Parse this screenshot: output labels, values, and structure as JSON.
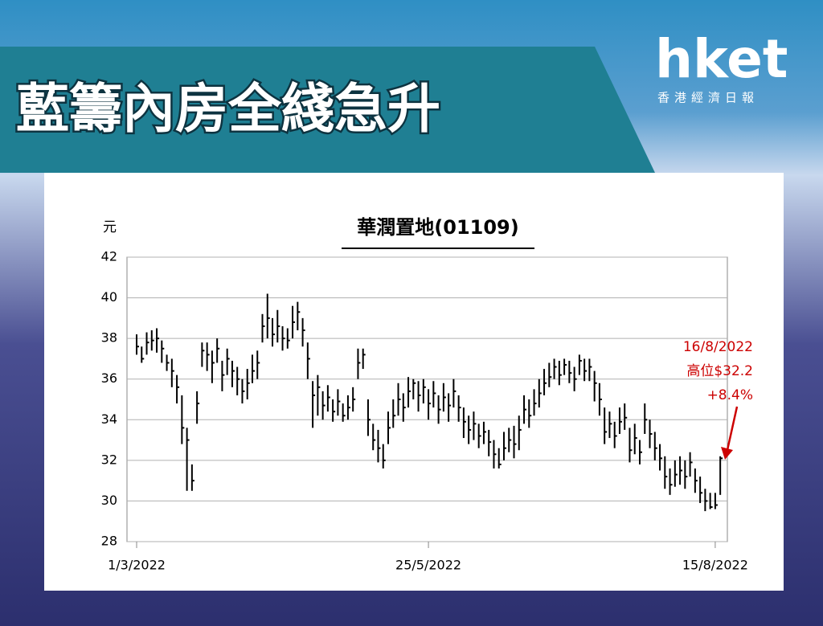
{
  "header": {
    "title": "藍籌內房全綫急升",
    "logo": "hket",
    "logo_sub": "香港經濟日報"
  },
  "chart_data": {
    "type": "hlc",
    "title": "華潤置地(01109)",
    "y_label": "元",
    "color": "#000000",
    "annotation": [
      "16/8/2022",
      "高位$32.2",
      "+8.4%"
    ],
    "annotation_color": "#cc0000",
    "ylim": [
      28,
      42
    ],
    "yticks": [
      28,
      30,
      32,
      34,
      36,
      38,
      40,
      42
    ],
    "grid": true,
    "categories": [
      "1/3/2022",
      null,
      null,
      null,
      null,
      null,
      null,
      null,
      null,
      null,
      null,
      null,
      null,
      null,
      null,
      null,
      null,
      null,
      null,
      null,
      null,
      null,
      null,
      null,
      null,
      null,
      null,
      null,
      null,
      null,
      null,
      null,
      null,
      null,
      null,
      null,
      null,
      null,
      null,
      null,
      null,
      null,
      null,
      null,
      null,
      null,
      null,
      null,
      null,
      null,
      null,
      null,
      null,
      null,
      null,
      null,
      null,
      null,
      "25/5/2022",
      null,
      null,
      null,
      null,
      null,
      null,
      null,
      null,
      null,
      null,
      null,
      null,
      null,
      null,
      null,
      null,
      null,
      null,
      null,
      null,
      null,
      null,
      null,
      null,
      null,
      null,
      null,
      null,
      null,
      null,
      null,
      null,
      null,
      null,
      null,
      null,
      null,
      null,
      null,
      null,
      null,
      null,
      null,
      null,
      null,
      null,
      null,
      null,
      null,
      null,
      null,
      null,
      null,
      null,
      null,
      null,
      "15/8/2022",
      null
    ],
    "high": [
      38.2,
      37.6,
      38.3,
      38.4,
      38.5,
      37.9,
      37.2,
      37.0,
      36.2,
      35.2,
      33.6,
      31.8,
      35.4,
      37.8,
      37.8,
      37.4,
      38.0,
      36.9,
      37.5,
      36.9,
      36.6,
      36.0,
      36.5,
      37.2,
      37.4,
      39.2,
      40.2,
      39.0,
      39.4,
      38.6,
      38.5,
      39.6,
      39.8,
      39.0,
      37.8,
      35.9,
      36.2,
      35.4,
      35.7,
      35.0,
      35.5,
      34.8,
      35.2,
      35.6,
      37.5,
      37.5,
      35.0,
      33.8,
      33.5,
      32.8,
      34.4,
      35.0,
      35.8,
      35.3,
      36.1,
      36.0,
      35.9,
      36.0,
      35.5,
      35.9,
      35.2,
      35.8,
      35.3,
      36.0,
      35.2,
      34.6,
      34.2,
      34.4,
      33.8,
      33.9,
      33.5,
      33.0,
      32.6,
      33.4,
      33.6,
      33.7,
      34.2,
      35.2,
      35.0,
      35.5,
      36.0,
      36.5,
      36.8,
      37.0,
      36.9,
      37.0,
      36.9,
      36.6,
      37.2,
      37.0,
      37.0,
      36.4,
      35.8,
      34.6,
      34.4,
      33.9,
      34.6,
      34.8,
      33.6,
      33.8,
      33.0,
      34.8,
      34.0,
      33.4,
      32.8,
      32.2,
      31.6,
      32.0,
      32.2,
      32.0,
      32.4,
      31.6,
      31.2,
      30.6,
      30.4,
      30.4,
      32.2
    ],
    "low": [
      37.2,
      36.8,
      37.2,
      37.4,
      37.3,
      36.8,
      36.4,
      35.6,
      34.8,
      32.8,
      30.5,
      30.5,
      33.8,
      36.6,
      36.4,
      35.8,
      36.8,
      35.4,
      36.2,
      35.6,
      35.2,
      34.8,
      35.0,
      35.8,
      36.0,
      37.8,
      38.0,
      37.6,
      37.8,
      37.4,
      37.5,
      38.0,
      38.4,
      37.6,
      36.0,
      33.6,
      34.2,
      34.0,
      34.4,
      33.9,
      34.2,
      33.9,
      34.0,
      34.4,
      36.0,
      36.5,
      33.2,
      32.5,
      31.9,
      31.6,
      32.8,
      33.6,
      34.2,
      33.9,
      34.6,
      35.0,
      34.4,
      34.8,
      34.0,
      34.6,
      33.8,
      34.4,
      33.9,
      34.6,
      33.9,
      33.1,
      32.8,
      33.0,
      32.6,
      32.8,
      32.2,
      31.6,
      31.6,
      32.0,
      32.4,
      32.1,
      32.5,
      33.8,
      33.6,
      34.2,
      34.6,
      35.2,
      35.6,
      36.0,
      35.7,
      36.2,
      35.8,
      35.4,
      36.2,
      35.9,
      35.9,
      34.9,
      34.2,
      32.8,
      33.1,
      32.6,
      33.3,
      33.5,
      31.9,
      32.3,
      31.8,
      33.3,
      32.6,
      32.0,
      31.5,
      30.6,
      30.3,
      30.7,
      30.8,
      30.6,
      31.2,
      30.4,
      29.9,
      29.5,
      29.6,
      29.6,
      30.3
    ],
    "close": [
      37.6,
      37.0,
      37.8,
      37.9,
      38.0,
      37.5,
      36.8,
      36.4,
      35.6,
      33.6,
      33.0,
      31.0,
      34.8,
      37.4,
      37.2,
      36.8,
      37.5,
      36.2,
      37.0,
      36.4,
      36.0,
      35.4,
      35.8,
      36.4,
      36.8,
      38.6,
      39.0,
      38.2,
      38.6,
      38.0,
      37.9,
      38.8,
      39.3,
      38.4,
      37.0,
      35.2,
      35.6,
      34.7,
      35.1,
      34.4,
      34.9,
      34.2,
      34.6,
      35.0,
      36.8,
      37.2,
      34.0,
      33.0,
      32.6,
      32.0,
      33.6,
      34.2,
      35.0,
      34.6,
      35.4,
      35.8,
      35.2,
      35.6,
      34.8,
      35.3,
      34.5,
      35.1,
      34.7,
      35.4,
      34.6,
      33.9,
      33.5,
      33.8,
      33.2,
      33.4,
      32.9,
      32.3,
      31.8,
      32.6,
      33.0,
      32.8,
      33.5,
      34.5,
      34.2,
      34.8,
      35.3,
      35.8,
      36.1,
      36.6,
      36.2,
      36.7,
      36.3,
      36.0,
      36.9,
      36.4,
      36.6,
      35.8,
      35.0,
      33.4,
      33.8,
      33.2,
      33.9,
      34.1,
      32.5,
      33.1,
      32.4,
      34.0,
      33.3,
      32.6,
      32.1,
      31.2,
      30.8,
      31.3,
      31.5,
      31.2,
      31.9,
      31.0,
      30.4,
      30.0,
      29.7,
      29.8,
      32.1
    ]
  }
}
